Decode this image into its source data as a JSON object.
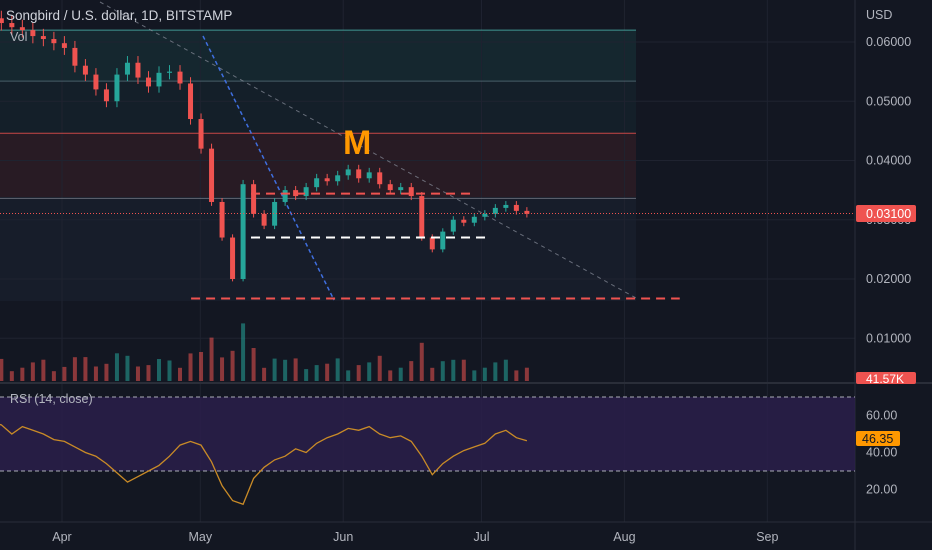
{
  "header": {
    "symbol_title": "Songbird / U.S. dollar, 1D, BITSTAMP",
    "vol_label": "Vol",
    "currency": "USD"
  },
  "colors": {
    "background": "#131722",
    "grid": "#1f2330",
    "up": "#26a69a",
    "down": "#ef5350",
    "rsi_line": "#c98b27",
    "rsi_band": "#2a1f4a",
    "rsi_badge": "#ff9800",
    "price_badge": "#ef5350",
    "annotation": "#ff9800",
    "trend_blue": "#3f6fe0"
  },
  "chart_data": [
    {
      "type": "candlestick",
      "title": "Songbird / U.S. dollar, 1D, BITSTAMP",
      "ylabel": "USD",
      "ylim": [
        0.0,
        0.067
      ],
      "y_ticks": [
        "0.06000",
        "0.05000",
        "0.04000",
        "0.03000",
        "0.02000",
        "0.01000"
      ],
      "x_ticks": [
        "Apr",
        "May",
        "Jun",
        "Jul",
        "Aug",
        "Sep"
      ],
      "last_price_label": "0.03100",
      "volume_label": "41.57K",
      "annotation_text": "M",
      "horizontal_levels": [
        0.062,
        0.0534,
        0.0446,
        0.0336
      ],
      "dashed_levels": [
        {
          "value": 0.0344,
          "color": "#ef5350",
          "from": "2022-05-12",
          "to": "2022-06-29"
        },
        {
          "value": 0.027,
          "color": "#ffffff",
          "from": "2022-05-12",
          "to": "2022-07-03"
        },
        {
          "value": 0.0167,
          "color": "#ef5350",
          "from": "2022-04-29",
          "to": "2022-08-13"
        }
      ],
      "candles_close": [
        0.0665,
        0.0652,
        0.064,
        0.0632,
        0.0625,
        0.062,
        0.061,
        0.0605,
        0.0598,
        0.059,
        0.056,
        0.0545,
        0.052,
        0.05,
        0.0545,
        0.0565,
        0.054,
        0.0525,
        0.0548,
        0.055,
        0.053,
        0.047,
        0.042,
        0.033,
        0.027,
        0.02,
        0.036,
        0.031,
        0.029,
        0.033,
        0.035,
        0.034,
        0.0355,
        0.037,
        0.0365,
        0.0375,
        0.0385,
        0.037,
        0.038,
        0.036,
        0.035,
        0.0355,
        0.034,
        0.027,
        0.025,
        0.028,
        0.03,
        0.0295,
        0.0305,
        0.031,
        0.032,
        0.0325,
        0.0315,
        0.031
      ],
      "last_close": 0.031
    },
    {
      "type": "line",
      "title": "RSI (14, close)",
      "ylim": [
        5,
        75
      ],
      "y_ticks": [
        "60.00",
        "40.00",
        "20.00"
      ],
      "band": [
        30,
        70
      ],
      "last_value_label": "46.35",
      "values": [
        52,
        58,
        56,
        55,
        50,
        54,
        52,
        50,
        47,
        46,
        43,
        40,
        38,
        34,
        29,
        24,
        27,
        30,
        33,
        38,
        44,
        46,
        44,
        35,
        22,
        14,
        12,
        26,
        32,
        36,
        38,
        42,
        40,
        45,
        48,
        50,
        53,
        52,
        54,
        50,
        48,
        49,
        46,
        38,
        28,
        34,
        38,
        41,
        43,
        45,
        50,
        52,
        48,
        46.35
      ]
    }
  ]
}
